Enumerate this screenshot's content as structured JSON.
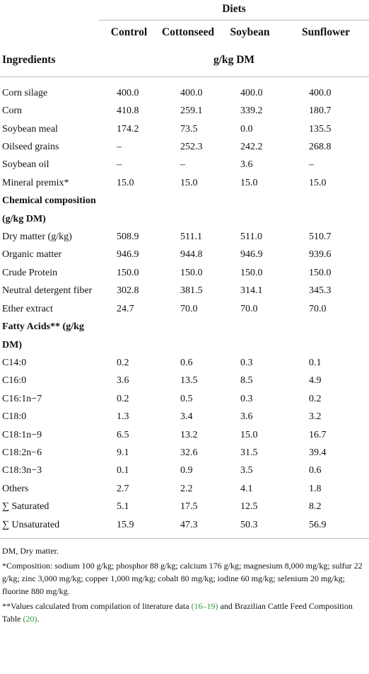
{
  "table": {
    "group_header": "Diets",
    "columns": [
      "Control",
      "Cottonseed",
      "Soybean",
      "Sunflower"
    ],
    "row_header": "Ingredients",
    "unit": "g/kg DM",
    "rows": [
      {
        "label": "Corn silage",
        "values": [
          "400.0",
          "400.0",
          "400.0",
          "400.0"
        ]
      },
      {
        "label": "Corn",
        "values": [
          "410.8",
          "259.1",
          "339.2",
          "180.7"
        ]
      },
      {
        "label": "Soybean meal",
        "values": [
          "174.2",
          "73.5",
          "0.0",
          "135.5"
        ]
      },
      {
        "label": "Oilseed grains",
        "values": [
          "–",
          "252.3",
          "242.2",
          "268.8"
        ]
      },
      {
        "label": "Soybean oil",
        "values": [
          "–",
          "–",
          "3.6",
          "–"
        ]
      },
      {
        "label": "Mineral premix*",
        "values": [
          "15.0",
          "15.0",
          "15.0",
          "15.0"
        ]
      },
      {
        "heading": "Chemical composition (g/kg DM)"
      },
      {
        "label": "Dry matter (g/kg)",
        "values": [
          "508.9",
          "511.1",
          "511.0",
          "510.7"
        ]
      },
      {
        "label": "Organic matter",
        "values": [
          "946.9",
          "944.8",
          "946.9",
          "939.6"
        ]
      },
      {
        "label": "Crude Protein",
        "values": [
          "150.0",
          "150.0",
          "150.0",
          "150.0"
        ]
      },
      {
        "label": "Neutral detergent fiber",
        "values": [
          "302.8",
          "381.5",
          "314.1",
          "345.3"
        ]
      },
      {
        "label": "Ether extract",
        "values": [
          "24.7",
          "70.0",
          "70.0",
          "70.0"
        ]
      },
      {
        "heading": "Fatty Acids** (g/kg DM)"
      },
      {
        "label": "C14:0",
        "values": [
          "0.2",
          "0.6",
          "0.3",
          "0.1"
        ]
      },
      {
        "label": "C16:0",
        "values": [
          "3.6",
          "13.5",
          "8.5",
          "4.9"
        ]
      },
      {
        "label": "C16:1n−7",
        "values": [
          "0.2",
          "0.5",
          "0.3",
          "0.2"
        ]
      },
      {
        "label": "C18:0",
        "values": [
          "1.3",
          "3.4",
          "3.6",
          "3.2"
        ]
      },
      {
        "label": "C18:1n−9",
        "values": [
          "6.5",
          "13.2",
          "15.0",
          "16.7"
        ]
      },
      {
        "label": "C18:2n−6",
        "values": [
          "9.1",
          "32.6",
          "31.5",
          "39.4"
        ]
      },
      {
        "label": "C18:3n−3",
        "values": [
          "0.1",
          "0.9",
          "3.5",
          "0.6"
        ]
      },
      {
        "label": "Others",
        "values": [
          "2.7",
          "2.2",
          "4.1",
          "1.8"
        ]
      },
      {
        "label": "∑ Saturated",
        "values": [
          "5.1",
          "17.5",
          "12.5",
          "8.2"
        ]
      },
      {
        "label": "∑ Unsaturated",
        "values": [
          "15.9",
          "47.3",
          "50.3",
          "56.9"
        ]
      }
    ]
  },
  "footnotes": [
    [
      "DM, Dry matter."
    ],
    [
      "*Composition: sodium 100 g/kg; phosphor 88 g/kg; calcium 176 g/kg; magnesium 8,000 mg/kg; sulfur 22 g/kg; zinc 3,000 mg/kg; copper 1,000 mg/kg; cobalt 80 mg/kg; iodine 60 mg/kg; selenium 20 mg/kg; fluorine 880 mg/kg."
    ],
    [
      "**Values calculated from compilation of literature data ",
      "(16–19)",
      " and Brazilian Cattle Feed Composition Table ",
      "(20)",
      "."
    ]
  ]
}
